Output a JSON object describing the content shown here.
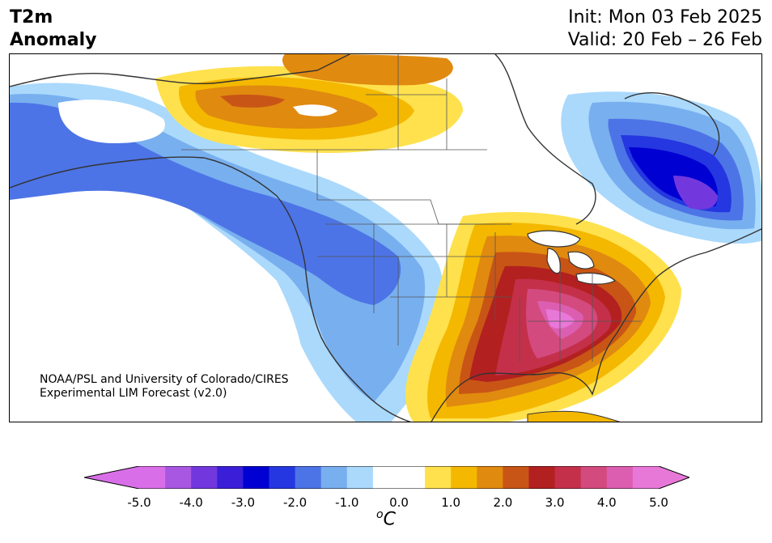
{
  "header": {
    "title_line1": "T2m",
    "title_line2": "Anomaly",
    "init": "Init: Mon 03 Feb 2025",
    "valid": "Valid: 20 Feb – 26 Feb"
  },
  "credit": {
    "line1": "NOAA/PSL and University of Colorado/CIRES",
    "line2": "Experimental LIM Forecast (v2.0)"
  },
  "colorbar": {
    "unit_sup": "o",
    "unit": "C",
    "ticks": [
      "-5.0",
      "-4.0",
      "-3.0",
      "-2.0",
      "-1.0",
      "0.0",
      "1.0",
      "2.0",
      "3.0",
      "4.0",
      "5.0"
    ],
    "colors": {
      "under": "#d96fe8",
      "over": "#e878d8",
      "bins": [
        "#d96fe8",
        "#a857e3",
        "#7238de",
        "#3b1fd8",
        "#0000d2",
        "#2537e0",
        "#4d74e6",
        "#78afef",
        "#aad9fc",
        "#ffffff",
        "#ffffff",
        "#ffe14d",
        "#f4b800",
        "#e08a10",
        "#c85515",
        "#b32020",
        "#c4304a",
        "#d34a7e",
        "#dc5eb0",
        "#e878d8"
      ]
    }
  },
  "map_colors": {
    "land_outline": "#333333",
    "state_lines": "#555555",
    "water": "#ffffff"
  }
}
